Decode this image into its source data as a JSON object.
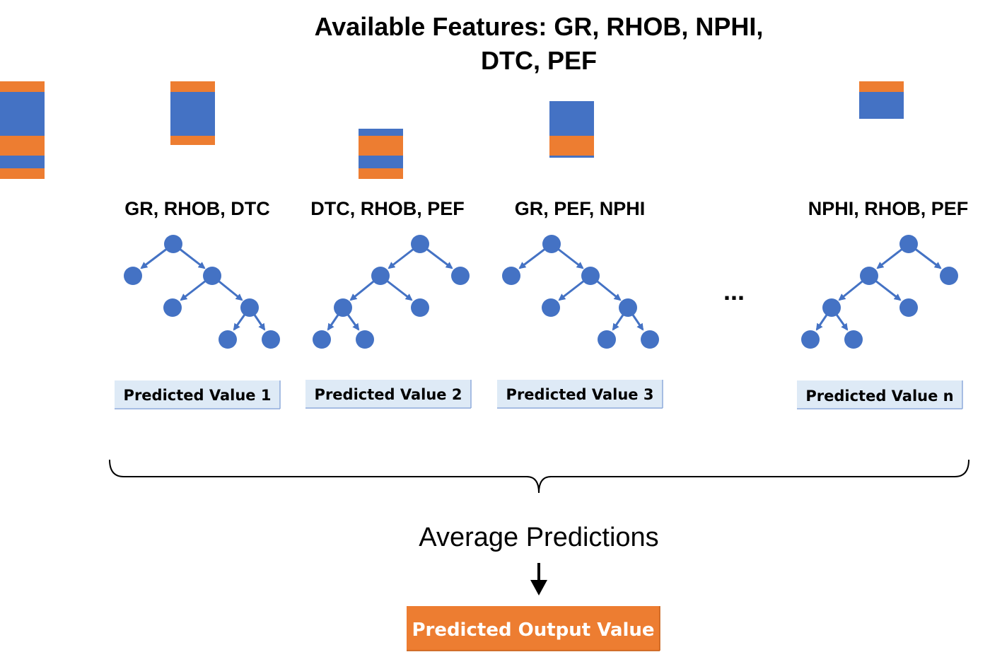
{
  "title": {
    "line1": "Available Features: GR, RHOB, NPHI,",
    "line2": "DTC, PEF"
  },
  "colors": {
    "feature_blue": "#4472C4",
    "feature_orange": "#ED7D31",
    "tree_blue": "#4472C4",
    "prediction_fill": "#DEEAF6",
    "output_fill": "#ED7D31",
    "brace": "#000000"
  },
  "sample_columns": [
    {
      "segments": [
        "orange",
        "blue",
        "orange",
        "blue",
        "orange"
      ]
    },
    {
      "segments": [
        "orange",
        "blue",
        "orange"
      ]
    },
    {
      "segments": [
        "blue",
        "orange",
        "blue",
        "orange"
      ]
    },
    {
      "segments": [
        "blue",
        "orange",
        "blue"
      ]
    },
    {
      "segments": [
        "orange",
        "blue"
      ]
    }
  ],
  "trees": [
    {
      "features": "GR, RHOB, DTC",
      "prediction": "Predicted Value 1",
      "shape": "right-deep"
    },
    {
      "features": "DTC, RHOB, PEF",
      "prediction": "Predicted Value 2",
      "shape": "left-deep"
    },
    {
      "features": "GR, PEF, NPHI",
      "prediction": "Predicted Value 3",
      "shape": "right-deep"
    },
    {
      "features": "NPHI, RHOB, PEF",
      "prediction": "Predicted Value n",
      "shape": "left-deep"
    }
  ],
  "ellipsis": "...",
  "aggregate_label": "Average Predictions",
  "arrow_icon": "down-arrow-icon",
  "output_label": "Predicted Output Value"
}
